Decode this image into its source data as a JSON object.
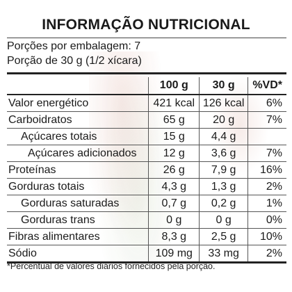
{
  "label": {
    "title": "INFORMAÇÃO NUTRICIONAL",
    "servings_per_package": "Porções por embalagem: 7",
    "portion_size": "Porção de 30 g (1/2 xícara)",
    "headers": {
      "per_100g": "100 g",
      "per_30g": "30 g",
      "daily_value": "%VD*"
    },
    "rows": [
      {
        "name": "Valor energético",
        "per_100g": "421 kcal",
        "per_30g": "126 kcal",
        "dv": "6%"
      },
      {
        "name": "Carboidratos",
        "per_100g": "65 g",
        "per_30g": "20 g",
        "dv": "7%"
      },
      {
        "name": "Açúcares totais",
        "per_100g": "15 g",
        "per_30g": "4,4 g",
        "dv": ""
      },
      {
        "name": "Açúcares adicionados",
        "per_100g": "12 g",
        "per_30g": "3,6 g",
        "dv": "7%"
      },
      {
        "name": "Proteínas",
        "per_100g": "26 g",
        "per_30g": "7,9 g",
        "dv": "16%"
      },
      {
        "name": "Gorduras totais",
        "per_100g": "4,3 g",
        "per_30g": "1,3 g",
        "dv": "2%"
      },
      {
        "name": "Gorduras saturadas",
        "per_100g": "0,7 g",
        "per_30g": "0,2 g",
        "dv": "1%"
      },
      {
        "name": "Gorduras trans",
        "per_100g": "0 g",
        "per_30g": "0 g",
        "dv": "0%"
      },
      {
        "name": "Fibras alimentares",
        "per_100g": "8,3 g",
        "per_30g": "2,5 g",
        "dv": "10%"
      },
      {
        "name": "Sódio",
        "per_100g": "109 mg",
        "per_30g": "33 mg",
        "dv": "2%"
      }
    ],
    "footnote": "*Percentual de valores diários fornecidos pela porção."
  }
}
